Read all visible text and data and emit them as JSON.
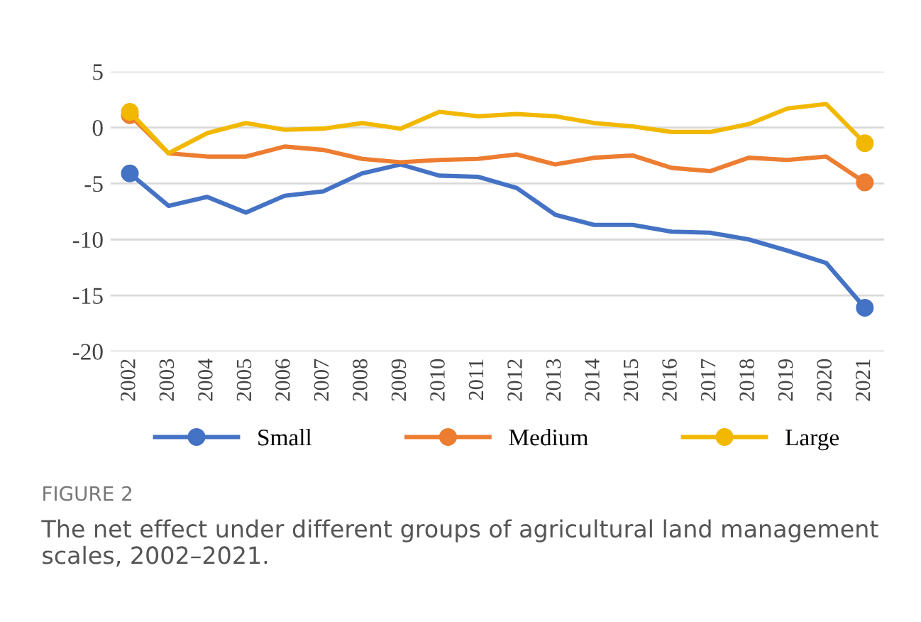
{
  "chart_data": {
    "type": "line",
    "categories": [
      "2002",
      "2003",
      "2004",
      "2005",
      "2006",
      "2007",
      "2008",
      "2009",
      "2010",
      "2011",
      "2012",
      "2013",
      "2014",
      "2015",
      "2016",
      "2017",
      "2018",
      "2019",
      "2020",
      "2021"
    ],
    "series": [
      {
        "name": "Small",
        "color": "#4472c4",
        "values": [
          -4.1,
          -7.0,
          -6.2,
          -7.6,
          -6.1,
          -5.7,
          -4.1,
          -3.3,
          -4.3,
          -4.4,
          -5.4,
          -7.8,
          -8.7,
          -8.7,
          -9.3,
          -9.4,
          -10.0,
          -11.0,
          -12.1,
          -16.1
        ]
      },
      {
        "name": "Medium",
        "color": "#ed7d31",
        "values": [
          1.1,
          -2.3,
          -2.6,
          -2.6,
          -1.7,
          -2.0,
          -2.8,
          -3.1,
          -2.9,
          -2.8,
          -2.4,
          -3.3,
          -2.7,
          -2.5,
          -3.6,
          -3.9,
          -2.7,
          -2.9,
          -2.6,
          -4.9
        ]
      },
      {
        "name": "Large",
        "color": "#f2b800",
        "values": [
          1.4,
          -2.3,
          -0.5,
          0.4,
          -0.2,
          -0.1,
          0.4,
          -0.1,
          1.4,
          1.0,
          1.2,
          1.0,
          0.4,
          0.1,
          -0.4,
          -0.4,
          0.3,
          1.7,
          2.1,
          -1.4
        ]
      }
    ],
    "ylim": [
      -20,
      5
    ],
    "yticks": [
      -20,
      -15,
      -10,
      -5,
      0,
      5
    ],
    "grid": "y",
    "legend": "bottom",
    "line_style": "solid",
    "annotations": [
      "FIGURE 2",
      "The net effect under different groups of agricultural land management scales, 2002–2021."
    ]
  }
}
